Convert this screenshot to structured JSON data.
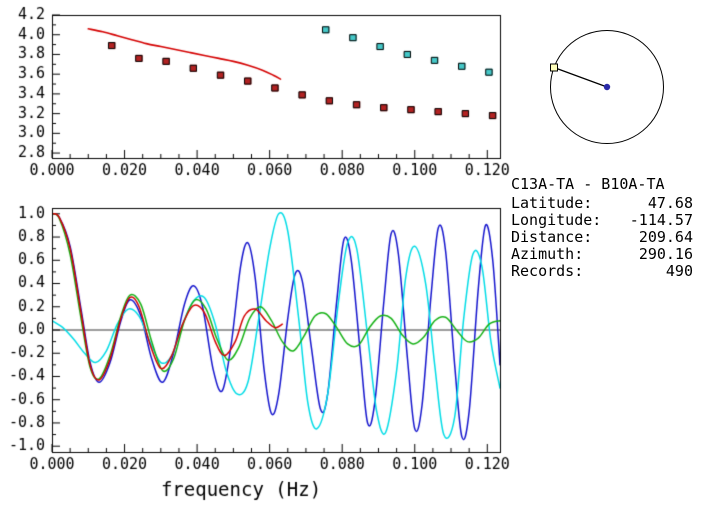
{
  "info_panel": {
    "station_pair": "C13A-TA - B10A-TA",
    "rows": [
      {
        "key": "latitude",
        "label": "Latitude:",
        "value": "47.68"
      },
      {
        "key": "longitude",
        "label": "Longitude:",
        "value": "-114.57"
      },
      {
        "key": "distance",
        "label": "Distance:",
        "value": "209.64"
      },
      {
        "key": "azimuth",
        "label": "Azimuth:",
        "value": "290.16"
      },
      {
        "key": "records",
        "label": "Records:",
        "value": "490"
      }
    ]
  },
  "azimuth_indicator": {
    "azimuth_deg": 290.16,
    "circle_color": "#000000",
    "line_color": "#000000",
    "center_marker": {
      "shape": "filled-circle",
      "color": "#2a2aa8",
      "radius": 3.2
    },
    "edge_marker": {
      "shape": "open-square",
      "fill": "#ffffbb",
      "edge": "#000000",
      "size": 7
    }
  },
  "chart_data": [
    {
      "id": "dispersion",
      "type": "line",
      "title": "",
      "xlabel": "",
      "ylabel": "",
      "xlim": [
        0,
        0.1235
      ],
      "ylim": [
        2.75,
        4.2
      ],
      "grid": false,
      "xticks": {
        "values": [
          0,
          0.02,
          0.04,
          0.06,
          0.08,
          0.1,
          0.12
        ],
        "labels": [
          "0.000",
          "0.020",
          "0.040",
          "0.060",
          "0.080",
          "0.100",
          "0.120"
        ],
        "minor_step": 0.005
      },
      "yticks": {
        "values": [
          2.8,
          3.0,
          3.2,
          3.4,
          3.6,
          3.8,
          4.0,
          4.2
        ],
        "labels": [
          "2.8",
          "3.0",
          "3.2",
          "3.4",
          "3.6",
          "3.8",
          "4.0",
          "4.2"
        ],
        "minor_step": 0.1
      },
      "series": [
        {
          "name": "predicted-dispersion-curve",
          "kind": "line",
          "color": "#d40000",
          "width": 1.6,
          "points": [
            [
              0.01,
              4.06
            ],
            [
              0.014,
              4.03
            ],
            [
              0.018,
              3.99
            ],
            [
              0.022,
              3.95
            ],
            [
              0.026,
              3.91
            ],
            [
              0.03,
              3.88
            ],
            [
              0.034,
              3.85
            ],
            [
              0.038,
              3.82
            ],
            [
              0.042,
              3.79
            ],
            [
              0.046,
              3.76
            ],
            [
              0.05,
              3.73
            ],
            [
              0.054,
              3.69
            ],
            [
              0.058,
              3.64
            ],
            [
              0.061,
              3.59
            ],
            [
              0.063,
              3.55
            ]
          ]
        },
        {
          "name": "measured-dispersion-red",
          "kind": "square",
          "color": "#b22222",
          "edge": "#000000",
          "size": 7,
          "points": [
            [
              0.0165,
              3.89
            ],
            [
              0.024,
              3.76
            ],
            [
              0.0315,
              3.73
            ],
            [
              0.039,
              3.66
            ],
            [
              0.0465,
              3.59
            ],
            [
              0.054,
              3.53
            ],
            [
              0.0615,
              3.46
            ],
            [
              0.069,
              3.39
            ],
            [
              0.0765,
              3.33
            ],
            [
              0.084,
              3.29
            ],
            [
              0.0915,
              3.26
            ],
            [
              0.099,
              3.24
            ],
            [
              0.1065,
              3.22
            ],
            [
              0.114,
              3.2
            ],
            [
              0.1215,
              3.18
            ]
          ]
        },
        {
          "name": "measured-dispersion-cyan",
          "kind": "square",
          "color": "#45c8c8",
          "edge": "#000000",
          "size": 7,
          "points": [
            [
              0.0755,
              4.05
            ],
            [
              0.083,
              3.97
            ],
            [
              0.0905,
              3.88
            ],
            [
              0.098,
              3.8
            ],
            [
              0.1055,
              3.74
            ],
            [
              0.113,
              3.68
            ],
            [
              0.1205,
              3.62
            ]
          ]
        }
      ]
    },
    {
      "id": "waveforms",
      "type": "line",
      "title": "",
      "xlabel": "frequency (Hz)",
      "ylabel": "",
      "xlim": [
        0,
        0.1235
      ],
      "ylim": [
        -1.05,
        1.05
      ],
      "grid": false,
      "zeroline": true,
      "xticks": {
        "values": [
          0,
          0.02,
          0.04,
          0.06,
          0.08,
          0.1,
          0.12
        ],
        "labels": [
          "0.000",
          "0.020",
          "0.040",
          "0.060",
          "0.080",
          "0.100",
          "0.120"
        ],
        "minor_step": 0.005
      },
      "yticks": {
        "values": [
          -1.0,
          -0.8,
          -0.6,
          -0.4,
          -0.2,
          0.0,
          0.2,
          0.4,
          0.6,
          0.8,
          1.0
        ],
        "labels": [
          "-1.0",
          "-0.8",
          "-0.6",
          "-0.4",
          "-0.2",
          "0.0",
          "0.2",
          "0.4",
          "0.6",
          "0.8",
          "1.0"
        ],
        "minor_step": 0.1
      },
      "series": [
        {
          "name": "waveform-blue",
          "kind": "line",
          "color": "#1414cd",
          "width": 1.5,
          "points": [
            [
              0.0,
              1.0
            ],
            [
              0.002,
              0.97
            ],
            [
              0.005,
              0.72
            ],
            [
              0.008,
              0.18
            ],
            [
              0.0105,
              -0.28
            ],
            [
              0.013,
              -0.45
            ],
            [
              0.016,
              -0.28
            ],
            [
              0.019,
              0.08
            ],
            [
              0.0215,
              0.26
            ],
            [
              0.0245,
              0.12
            ],
            [
              0.0275,
              -0.25
            ],
            [
              0.0305,
              -0.45
            ],
            [
              0.0335,
              -0.2
            ],
            [
              0.0365,
              0.22
            ],
            [
              0.039,
              0.38
            ],
            [
              0.0415,
              0.2
            ],
            [
              0.0445,
              -0.35
            ],
            [
              0.047,
              -0.52
            ],
            [
              0.0495,
              -0.1
            ],
            [
              0.052,
              0.55
            ],
            [
              0.054,
              0.75
            ],
            [
              0.056,
              0.45
            ],
            [
              0.0585,
              -0.35
            ],
            [
              0.0605,
              -0.72
            ],
            [
              0.0625,
              -0.55
            ],
            [
              0.065,
              0.1
            ],
            [
              0.067,
              0.48
            ],
            [
              0.069,
              0.42
            ],
            [
              0.0715,
              -0.15
            ],
            [
              0.074,
              -0.68
            ],
            [
              0.076,
              -0.55
            ],
            [
              0.0785,
              0.25
            ],
            [
              0.0805,
              0.78
            ],
            [
              0.0825,
              0.6
            ],
            [
              0.085,
              -0.2
            ],
            [
              0.087,
              -0.8
            ],
            [
              0.089,
              -0.62
            ],
            [
              0.0915,
              0.25
            ],
            [
              0.0935,
              0.83
            ],
            [
              0.0955,
              0.65
            ],
            [
              0.098,
              -0.25
            ],
            [
              0.1,
              -0.85
            ],
            [
              0.102,
              -0.65
            ],
            [
              0.1045,
              0.3
            ],
            [
              0.1065,
              0.88
            ],
            [
              0.1085,
              0.68
            ],
            [
              0.111,
              -0.3
            ],
            [
              0.113,
              -0.92
            ],
            [
              0.115,
              -0.7
            ],
            [
              0.1175,
              0.35
            ],
            [
              0.1195,
              0.9
            ],
            [
              0.1215,
              0.6
            ],
            [
              0.1235,
              -0.3
            ]
          ]
        },
        {
          "name": "waveform-cyan",
          "kind": "line",
          "color": "#00dce6",
          "width": 1.5,
          "points": [
            [
              0.0,
              0.08
            ],
            [
              0.003,
              0.02
            ],
            [
              0.006,
              -0.08
            ],
            [
              0.009,
              -0.2
            ],
            [
              0.012,
              -0.28
            ],
            [
              0.015,
              -0.18
            ],
            [
              0.018,
              0.05
            ],
            [
              0.021,
              0.18
            ],
            [
              0.024,
              0.12
            ],
            [
              0.027,
              -0.1
            ],
            [
              0.03,
              -0.28
            ],
            [
              0.033,
              -0.22
            ],
            [
              0.036,
              0.05
            ],
            [
              0.039,
              0.25
            ],
            [
              0.042,
              0.28
            ],
            [
              0.045,
              0.05
            ],
            [
              0.048,
              -0.35
            ],
            [
              0.051,
              -0.55
            ],
            [
              0.054,
              -0.45
            ],
            [
              0.057,
              0.1
            ],
            [
              0.06,
              0.7
            ],
            [
              0.0625,
              1.0
            ],
            [
              0.065,
              0.85
            ],
            [
              0.068,
              0.1
            ],
            [
              0.0705,
              -0.62
            ],
            [
              0.073,
              -0.85
            ],
            [
              0.076,
              -0.55
            ],
            [
              0.079,
              0.25
            ],
            [
              0.0815,
              0.75
            ],
            [
              0.084,
              0.7
            ],
            [
              0.087,
              -0.05
            ],
            [
              0.0895,
              -0.7
            ],
            [
              0.092,
              -0.88
            ],
            [
              0.095,
              -0.35
            ],
            [
              0.0975,
              0.45
            ],
            [
              0.1,
              0.72
            ],
            [
              0.103,
              0.4
            ],
            [
              0.1055,
              -0.3
            ],
            [
              0.108,
              -0.9
            ],
            [
              0.111,
              -0.75
            ],
            [
              0.1135,
              0.1
            ],
            [
              0.116,
              0.65
            ],
            [
              0.1185,
              0.55
            ],
            [
              0.121,
              -0.1
            ],
            [
              0.1235,
              -0.5
            ]
          ]
        },
        {
          "name": "waveform-green",
          "kind": "line",
          "color": "#15b115",
          "width": 1.5,
          "points": [
            [
              0.0,
              1.0
            ],
            [
              0.002,
              0.96
            ],
            [
              0.005,
              0.65
            ],
            [
              0.008,
              0.1
            ],
            [
              0.0105,
              -0.32
            ],
            [
              0.013,
              -0.42
            ],
            [
              0.016,
              -0.22
            ],
            [
              0.019,
              0.12
            ],
            [
              0.0215,
              0.3
            ],
            [
              0.0245,
              0.22
            ],
            [
              0.0275,
              -0.1
            ],
            [
              0.0305,
              -0.35
            ],
            [
              0.0335,
              -0.25
            ],
            [
              0.0365,
              0.08
            ],
            [
              0.0395,
              0.26
            ],
            [
              0.0425,
              0.18
            ],
            [
              0.0455,
              -0.08
            ],
            [
              0.0485,
              -0.26
            ],
            [
              0.0515,
              -0.15
            ],
            [
              0.0545,
              0.1
            ],
            [
              0.0575,
              0.2
            ],
            [
              0.0605,
              0.08
            ],
            [
              0.0635,
              -0.1
            ],
            [
              0.0665,
              -0.18
            ],
            [
              0.0695,
              -0.05
            ],
            [
              0.0725,
              0.12
            ],
            [
              0.0755,
              0.14
            ],
            [
              0.0785,
              0.02
            ],
            [
              0.0815,
              -0.12
            ],
            [
              0.0845,
              -0.13
            ],
            [
              0.0875,
              0.02
            ],
            [
              0.0905,
              0.12
            ],
            [
              0.0935,
              0.1
            ],
            [
              0.0965,
              -0.04
            ],
            [
              0.0995,
              -0.12
            ],
            [
              0.1025,
              -0.06
            ],
            [
              0.1055,
              0.08
            ],
            [
              0.1085,
              0.11
            ],
            [
              0.1115,
              0.0
            ],
            [
              0.1145,
              -0.1
            ],
            [
              0.1175,
              -0.07
            ],
            [
              0.1205,
              0.05
            ],
            [
              0.1235,
              0.08
            ]
          ]
        },
        {
          "name": "waveform-red",
          "kind": "line",
          "color": "#d40000",
          "width": 1.5,
          "points": [
            [
              0.0,
              1.0
            ],
            [
              0.002,
              0.97
            ],
            [
              0.005,
              0.7
            ],
            [
              0.008,
              0.15
            ],
            [
              0.0105,
              -0.3
            ],
            [
              0.013,
              -0.43
            ],
            [
              0.016,
              -0.25
            ],
            [
              0.019,
              0.1
            ],
            [
              0.0215,
              0.28
            ],
            [
              0.024,
              0.2
            ],
            [
              0.027,
              -0.12
            ],
            [
              0.03,
              -0.33
            ],
            [
              0.033,
              -0.22
            ],
            [
              0.036,
              0.05
            ],
            [
              0.039,
              0.21
            ],
            [
              0.042,
              0.15
            ],
            [
              0.045,
              -0.1
            ],
            [
              0.0475,
              -0.22
            ],
            [
              0.0505,
              -0.1
            ],
            [
              0.053,
              0.12
            ],
            [
              0.056,
              0.18
            ],
            [
              0.059,
              0.08
            ],
            [
              0.0615,
              0.02
            ],
            [
              0.0635,
              0.05
            ]
          ]
        }
      ]
    }
  ]
}
